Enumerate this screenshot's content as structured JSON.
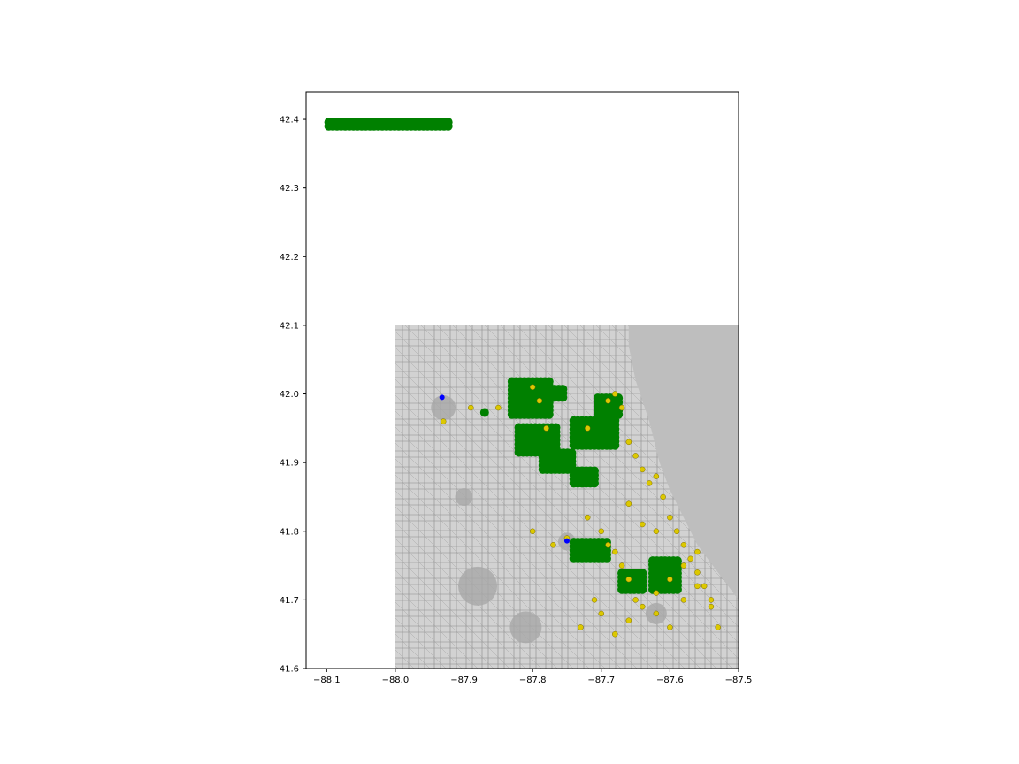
{
  "chart_data": {
    "type": "scatter",
    "title": "",
    "xlabel": "",
    "ylabel": "",
    "xlim": [
      -88.13,
      -87.5
    ],
    "ylim": [
      41.6,
      42.44
    ],
    "xticks": [
      -88.1,
      -88.0,
      -87.9,
      -87.8,
      -87.7,
      -87.6,
      -87.5
    ],
    "xtick_labels": [
      "−88.1",
      "−88.0",
      "−87.9",
      "−87.8",
      "−87.7",
      "−87.6",
      "−87.5"
    ],
    "yticks": [
      41.6,
      41.7,
      41.8,
      41.9,
      42.0,
      42.1,
      42.2,
      42.3,
      42.4
    ],
    "ytick_labels": [
      "41.6",
      "41.7",
      "41.8",
      "41.9",
      "42.0",
      "42.1",
      "42.2",
      "42.3",
      "42.4"
    ],
    "grid": false,
    "background_map": {
      "extent": {
        "xmin": -88.0,
        "xmax": -87.5,
        "ymin": 41.6,
        "ymax": 42.1
      },
      "land_color": "#c8c8c8",
      "water_color": "#bebebe"
    },
    "series": [
      {
        "color": "#008000",
        "marker": "large-circle",
        "clusters": [
          {
            "x": [
              -88.097,
              -87.92
            ],
            "y": [
              42.39,
              42.397
            ]
          },
          {
            "x": [
              -87.83,
              -87.775
            ],
            "y": [
              41.97,
              42.02
            ]
          },
          {
            "x": [
              -87.78,
              -87.755
            ],
            "y": [
              41.995,
              42.01
            ]
          },
          {
            "x": [
              -87.82,
              -87.765
            ],
            "y": [
              41.915,
              41.955
            ]
          },
          {
            "x": [
              -87.785,
              -87.74
            ],
            "y": [
              41.89,
              41.915
            ]
          },
          {
            "x": [
              -87.74,
              -87.68
            ],
            "y": [
              41.925,
              41.965
            ]
          },
          {
            "x": [
              -87.705,
              -87.675
            ],
            "y": [
              41.97,
              41.995
            ]
          },
          {
            "x": [
              -87.74,
              -87.71
            ],
            "y": [
              41.87,
              41.89
            ]
          },
          {
            "x": [
              -87.74,
              -87.69
            ],
            "y": [
              41.76,
              41.785
            ]
          },
          {
            "x": [
              -87.67,
              -87.635
            ],
            "y": [
              41.715,
              41.74
            ]
          },
          {
            "x": [
              -87.625,
              -87.585
            ],
            "y": [
              41.715,
              41.76
            ]
          }
        ],
        "x": [
          -88.095,
          -88.09,
          -87.87
        ],
        "y": [
          42.392,
          42.393,
          41.973
        ]
      },
      {
        "color": "#dcc800",
        "marker": "small-circle",
        "x": [
          -87.8,
          -87.79,
          -87.78,
          -87.72,
          -87.69,
          -87.68,
          -87.67,
          -87.66,
          -87.65,
          -87.64,
          -87.63,
          -87.62,
          -87.61,
          -87.6,
          -87.59,
          -87.58,
          -87.57,
          -87.56,
          -87.55,
          -87.54,
          -87.72,
          -87.7,
          -87.69,
          -87.68,
          -87.67,
          -87.66,
          -87.65,
          -87.62,
          -87.6,
          -87.58,
          -87.56,
          -87.7,
          -87.68,
          -87.66,
          -87.64,
          -87.62,
          -87.6,
          -87.58,
          -87.56,
          -87.54,
          -87.53,
          -87.75,
          -87.77,
          -87.8,
          -87.85,
          -87.89,
          -87.93,
          -87.73,
          -87.71,
          -87.66,
          -87.64,
          -87.62
        ],
        "y": [
          42.01,
          41.99,
          41.95,
          41.95,
          41.99,
          42.0,
          41.98,
          41.93,
          41.91,
          41.89,
          41.87,
          41.88,
          41.85,
          41.82,
          41.8,
          41.78,
          41.76,
          41.74,
          41.72,
          41.7,
          41.82,
          41.8,
          41.78,
          41.77,
          41.75,
          41.73,
          41.7,
          41.68,
          41.66,
          41.7,
          41.72,
          41.68,
          41.65,
          41.67,
          41.69,
          41.71,
          41.73,
          41.75,
          41.77,
          41.69,
          41.66,
          41.79,
          41.78,
          41.8,
          41.98,
          41.98,
          41.96,
          41.66,
          41.7,
          41.84,
          41.81,
          41.8
        ]
      },
      {
        "color": "#0000ff",
        "marker": "small-circle",
        "x": [
          -87.932,
          -87.75
        ],
        "y": [
          41.995,
          41.786
        ]
      }
    ]
  }
}
